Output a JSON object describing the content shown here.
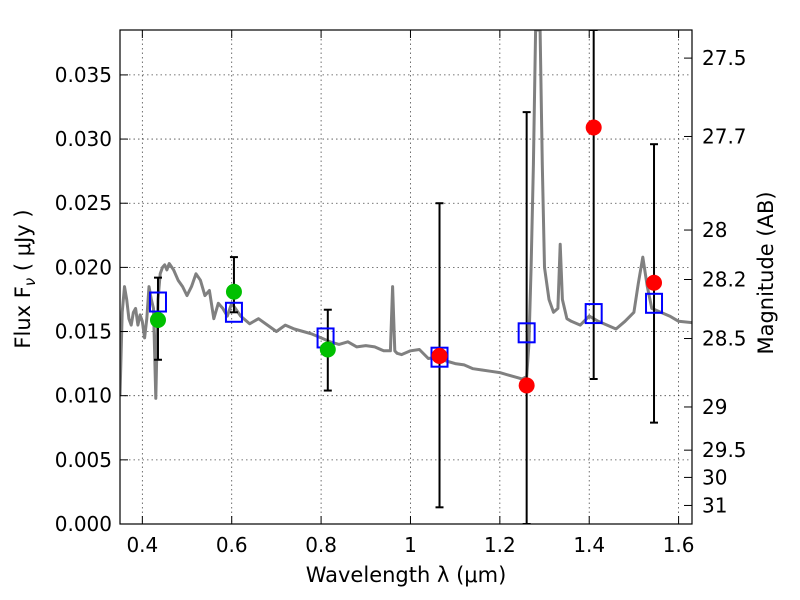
{
  "chart_data": {
    "type": "scatter",
    "xlabel": "Wavelength  λ (μm)",
    "ylabel": "Flux  F",
    "ylabel_sub": "ν",
    "ylabel_unit": "  ( μJy )",
    "y2label": "Magnitude (AB)",
    "xlim": [
      0.35,
      1.63
    ],
    "ylim": [
      0.0,
      0.0385
    ],
    "grid": true,
    "x_ticks": [
      0.4,
      0.6,
      0.8,
      1.0,
      1.2,
      1.4,
      1.6
    ],
    "x_tick_labels": [
      "0.4",
      "0.6",
      "0.8",
      "1",
      "1.2",
      "1.4",
      "1.6"
    ],
    "y_ticks": [
      0.0,
      0.005,
      0.01,
      0.015,
      0.02,
      0.025,
      0.03,
      0.035
    ],
    "y_tick_labels": [
      "0.000",
      "0.005",
      "0.010",
      "0.015",
      "0.020",
      "0.025",
      "0.030",
      "0.035"
    ],
    "y2_tick_labels": [
      "27.5",
      "27.7",
      "28",
      "28.2",
      "28.5",
      "29",
      "29.5",
      "30",
      "31"
    ],
    "y2_tick_values": [
      27.5,
      27.7,
      28.0,
      28.2,
      28.5,
      29.0,
      29.5,
      30.0,
      31.0
    ],
    "template_spectrum": {
      "color": "#808080",
      "x": [
        0.35,
        0.355,
        0.36,
        0.365,
        0.37,
        0.375,
        0.38,
        0.385,
        0.39,
        0.395,
        0.4,
        0.405,
        0.41,
        0.415,
        0.42,
        0.425,
        0.43,
        0.435,
        0.44,
        0.445,
        0.45,
        0.455,
        0.46,
        0.47,
        0.48,
        0.49,
        0.5,
        0.51,
        0.52,
        0.53,
        0.54,
        0.55,
        0.56,
        0.57,
        0.58,
        0.59,
        0.6,
        0.62,
        0.64,
        0.66,
        0.68,
        0.7,
        0.72,
        0.74,
        0.76,
        0.78,
        0.8,
        0.82,
        0.84,
        0.86,
        0.88,
        0.9,
        0.92,
        0.94,
        0.955,
        0.96,
        0.965,
        0.97,
        0.98,
        1.0,
        1.02,
        1.04,
        1.06,
        1.08,
        1.1,
        1.12,
        1.14,
        1.16,
        1.18,
        1.2,
        1.22,
        1.24,
        1.25,
        1.26,
        1.265,
        1.27,
        1.275,
        1.28,
        1.285,
        1.29,
        1.295,
        1.3,
        1.31,
        1.32,
        1.33,
        1.335,
        1.34,
        1.35,
        1.36,
        1.38,
        1.4,
        1.42,
        1.44,
        1.46,
        1.48,
        1.5,
        1.51,
        1.52,
        1.53,
        1.54,
        1.56,
        1.58,
        1.6,
        1.63
      ],
      "y": [
        0.01,
        0.0165,
        0.0185,
        0.0175,
        0.016,
        0.0155,
        0.0165,
        0.0168,
        0.0155,
        0.0163,
        0.0158,
        0.0145,
        0.016,
        0.0185,
        0.0175,
        0.0168,
        0.0098,
        0.0175,
        0.0195,
        0.02,
        0.0202,
        0.0198,
        0.0203,
        0.0198,
        0.019,
        0.0185,
        0.0178,
        0.0185,
        0.0195,
        0.019,
        0.0178,
        0.0182,
        0.016,
        0.0172,
        0.0168,
        0.0162,
        0.0172,
        0.0162,
        0.0156,
        0.016,
        0.0155,
        0.015,
        0.0155,
        0.0152,
        0.015,
        0.0148,
        0.0145,
        0.0142,
        0.014,
        0.0142,
        0.0138,
        0.0139,
        0.0138,
        0.0135,
        0.0135,
        0.0185,
        0.0135,
        0.0133,
        0.0132,
        0.0135,
        0.0136,
        0.0129,
        0.013,
        0.0127,
        0.0125,
        0.0124,
        0.0121,
        0.012,
        0.0119,
        0.0118,
        0.0116,
        0.0114,
        0.0113,
        0.0115,
        0.014,
        0.02,
        0.028,
        0.0385,
        0.0385,
        0.0385,
        0.028,
        0.02,
        0.0175,
        0.0165,
        0.0168,
        0.0218,
        0.0175,
        0.016,
        0.0158,
        0.0155,
        0.0162,
        0.0158,
        0.0155,
        0.0152,
        0.0158,
        0.0165,
        0.0188,
        0.0208,
        0.0185,
        0.0168,
        0.0165,
        0.0162,
        0.0158,
        0.0157
      ]
    },
    "series": [
      {
        "marker": "square",
        "color": "#0000ff",
        "x": [
          0.435,
          0.605,
          0.81,
          1.065,
          1.26,
          1.41,
          1.545
        ],
        "y": [
          0.0173,
          0.0165,
          0.0145,
          0.013,
          0.0149,
          0.0164,
          0.0172
        ]
      },
      {
        "marker": "circle",
        "color": "#00c000",
        "x": [
          0.435,
          0.605,
          0.815
        ],
        "y": [
          0.0159,
          0.0181,
          0.0136
        ]
      },
      {
        "marker": "circle",
        "color": "#ff0000",
        "x": [
          1.065,
          1.26,
          1.41,
          1.545
        ],
        "y": [
          0.0131,
          0.0108,
          0.0309,
          0.0188
        ]
      }
    ],
    "error_bars": [
      {
        "x": 0.435,
        "low": 0.0128,
        "high": 0.0192
      },
      {
        "x": 0.605,
        "low": 0.0165,
        "high": 0.0208
      },
      {
        "x": 0.815,
        "low": 0.0104,
        "high": 0.0167
      },
      {
        "x": 1.065,
        "low": 0.0013,
        "high": 0.025
      },
      {
        "x": 1.26,
        "low": 0.0,
        "high": 0.0321
      },
      {
        "x": 1.41,
        "low": 0.0113,
        "high": 0.0385
      },
      {
        "x": 1.545,
        "low": 0.0079,
        "high": 0.0296
      }
    ]
  }
}
